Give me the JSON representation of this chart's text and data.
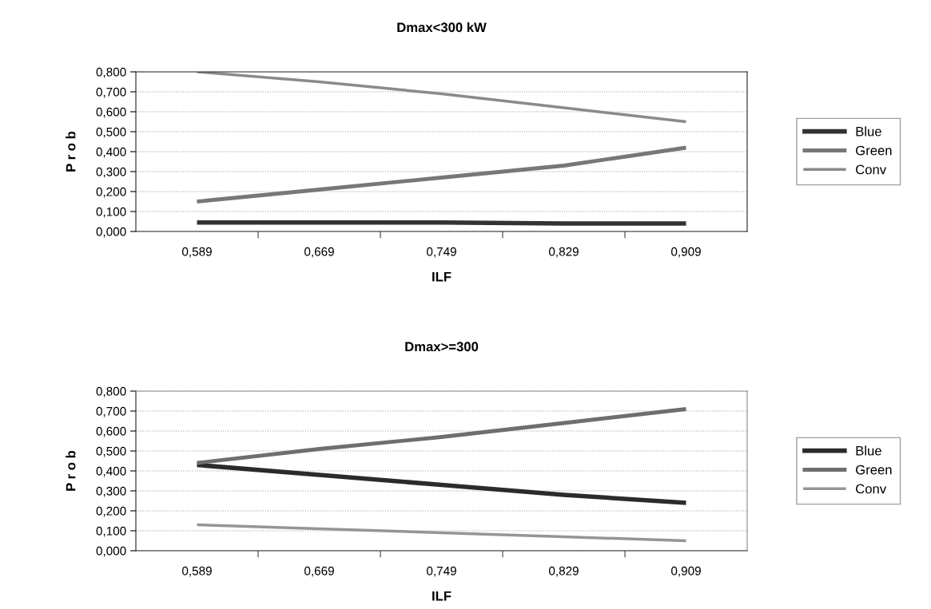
{
  "chart_data": [
    {
      "type": "line",
      "title": "Dmax<300 kW",
      "xlabel": "ILF",
      "ylabel": "P r o b",
      "categories": [
        "0,589",
        "0,669",
        "0,749",
        "0,829",
        "0,909"
      ],
      "series": [
        {
          "name": "Blue",
          "color": "#333333",
          "values": [
            0.045,
            0.045,
            0.045,
            0.04,
            0.04
          ]
        },
        {
          "name": "Green",
          "color": "#777777",
          "values": [
            0.15,
            0.21,
            0.27,
            0.33,
            0.42
          ]
        },
        {
          "name": "Conv",
          "color": "#8a8a8a",
          "values": [
            0.8,
            0.75,
            0.69,
            0.62,
            0.55
          ]
        }
      ],
      "ylim": [
        0,
        0.8
      ],
      "yticks": [
        {
          "value": 0,
          "label": "0,000"
        },
        {
          "value": 0.1,
          "label": "0,100"
        },
        {
          "value": 0.2,
          "label": "0,200"
        },
        {
          "value": 0.3,
          "label": "0,300"
        },
        {
          "value": 0.4,
          "label": "0,400"
        },
        {
          "value": 0.5,
          "label": "0,500"
        },
        {
          "value": 0.6,
          "label": "0,600"
        },
        {
          "value": 0.7,
          "label": "0,700"
        },
        {
          "value": 0.8,
          "label": "0,800"
        }
      ],
      "grid": "y",
      "legend": "right",
      "marker": "none",
      "line_style": "solid"
    },
    {
      "type": "line",
      "title": "Dmax>=300",
      "xlabel": "ILF",
      "ylabel": "P r o b",
      "categories": [
        "0,589",
        "0,669",
        "0,749",
        "0,829",
        "0,909"
      ],
      "series": [
        {
          "name": "Blue",
          "color": "#2b2b2b",
          "values": [
            0.43,
            0.38,
            0.33,
            0.28,
            0.24
          ]
        },
        {
          "name": "Green",
          "color": "#6e6e6e",
          "values": [
            0.44,
            0.51,
            0.57,
            0.64,
            0.71
          ]
        },
        {
          "name": "Conv",
          "color": "#959595",
          "values": [
            0.13,
            0.11,
            0.09,
            0.07,
            0.05
          ]
        }
      ],
      "ylim": [
        0,
        0.8
      ],
      "yticks": [
        {
          "value": 0,
          "label": "0,000"
        },
        {
          "value": 0.1,
          "label": "0,100"
        },
        {
          "value": 0.2,
          "label": "0,200"
        },
        {
          "value": 0.3,
          "label": "0,300"
        },
        {
          "value": 0.4,
          "label": "0,400"
        },
        {
          "value": 0.5,
          "label": "0,500"
        },
        {
          "value": 0.6,
          "label": "0,600"
        },
        {
          "value": 0.7,
          "label": "0,700"
        },
        {
          "value": 0.8,
          "label": "0,800"
        }
      ],
      "grid": "y",
      "legend": "right",
      "marker": "none",
      "line_style": "solid"
    }
  ]
}
